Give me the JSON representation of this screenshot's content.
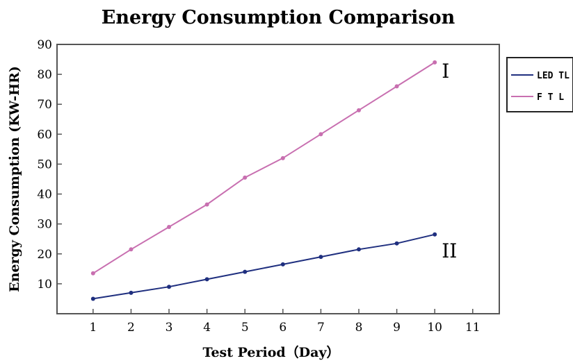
{
  "chart_data": {
    "type": "line",
    "title": "Energy Consumption Comparison",
    "xlabel": "Test Period（Day）",
    "ylabel": "Energy Consumption (KW-HR)",
    "xlim": [
      0.05,
      11.7
    ],
    "ylim": [
      0,
      90
    ],
    "x_ticks": [
      1,
      2,
      3,
      4,
      5,
      6,
      7,
      8,
      9,
      10,
      11
    ],
    "y_ticks": [
      10,
      20,
      30,
      40,
      50,
      60,
      70,
      80,
      90
    ],
    "x": [
      1,
      2,
      3,
      4,
      5,
      6,
      7,
      8,
      9,
      10
    ],
    "grid": false,
    "legend_position": "outside-right",
    "series": [
      {
        "name": "LED TL",
        "values": [
          5,
          7,
          9,
          11.5,
          14,
          16.5,
          19,
          21.5,
          23.5,
          26.5
        ],
        "color": "#1f2f7f",
        "annotation": "II"
      },
      {
        "name": "F T L",
        "values": [
          13.5,
          21.5,
          29,
          36.5,
          45.5,
          52,
          60,
          68,
          76,
          84
        ],
        "color": "#c86fb0",
        "annotation": "I"
      }
    ]
  }
}
